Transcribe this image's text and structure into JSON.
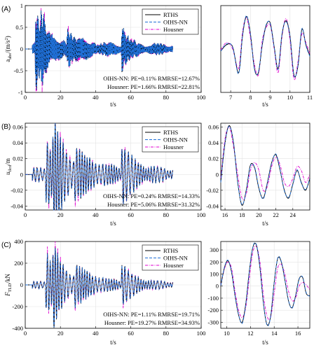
{
  "colors": {
    "rths": "#000000",
    "oihs": "#1f6fd6",
    "housner": "#e000d0"
  },
  "legend": [
    "RTHS",
    "OIHS-NN",
    "Housner"
  ],
  "chart_data": [
    {
      "panel": "(A)",
      "type": "line",
      "ylabel": "a_abs/(m/s^2)",
      "xlabel": "t/s",
      "xlim": [
        0,
        100
      ],
      "ylim": [
        -1,
        1
      ],
      "xticks": [
        "0",
        "20",
        "40",
        "60",
        "80",
        "100"
      ],
      "yticks": [
        "-1",
        "-0.5",
        "0",
        "0.5",
        "1"
      ],
      "annotation": [
        "OIHS-NN: PE=0.11%  RMRSE=12.67%",
        "Housner: PE=1.66%  RMRSE=22.81%"
      ],
      "signal": {
        "duration": 84,
        "events": [
          [
            6,
            0.95,
            1.6
          ],
          [
            9,
            0.6,
            2.5
          ],
          [
            24,
            0.35,
            4
          ],
          [
            55,
            0.55,
            1.5
          ]
        ],
        "baseline": 0.06,
        "freq": 2.7
      }
    },
    {
      "panel": "(A)",
      "type": "line",
      "zoom": true,
      "xlim": [
        6.5,
        11
      ],
      "ylim": [
        -1,
        1
      ],
      "xticks": [
        "7",
        "8",
        "9",
        "10",
        "11"
      ],
      "series": [
        {
          "name": "RTHS",
          "x": [
            6.5,
            6.8,
            7.1,
            7.4,
            7.6,
            7.8,
            8.0,
            8.2,
            8.4,
            8.6,
            8.8,
            9.0,
            9.2,
            9.4,
            9.6,
            9.8,
            10.0,
            10.2,
            10.4,
            10.6,
            10.8,
            11.0
          ],
          "y": [
            -0.05,
            0.1,
            0.05,
            -0.55,
            0.3,
            0.75,
            0.35,
            -0.45,
            -0.55,
            0.1,
            0.55,
            0.6,
            0.05,
            -0.45,
            0.35,
            0.65,
            0.3,
            -0.6,
            -0.4,
            0.45,
            0.1,
            -0.15
          ]
        },
        {
          "name": "OIHS-NN",
          "x": [
            6.5,
            6.8,
            7.1,
            7.4,
            7.6,
            7.8,
            8.0,
            8.2,
            8.4,
            8.6,
            8.8,
            9.0,
            9.2,
            9.4,
            9.6,
            9.8,
            10.0,
            10.2,
            10.4,
            10.6,
            10.8,
            11.0
          ],
          "y": [
            -0.05,
            0.12,
            0.04,
            -0.57,
            0.32,
            0.77,
            0.33,
            -0.47,
            -0.53,
            0.12,
            0.57,
            0.58,
            0.03,
            -0.47,
            0.37,
            0.63,
            0.28,
            -0.62,
            -0.38,
            0.47,
            0.08,
            -0.17
          ]
        },
        {
          "name": "Housner",
          "x": [
            6.5,
            6.8,
            7.1,
            7.4,
            7.6,
            7.8,
            8.0,
            8.2,
            8.4,
            8.6,
            8.8,
            9.0,
            9.2,
            9.4,
            9.6,
            9.8,
            10.0,
            10.2,
            10.4,
            10.6,
            10.8,
            11.0
          ],
          "y": [
            -0.02,
            0.15,
            0.0,
            -0.45,
            0.4,
            0.72,
            0.25,
            -0.35,
            -0.6,
            0.2,
            0.5,
            0.55,
            0.0,
            -0.55,
            0.3,
            0.7,
            0.2,
            -0.7,
            -0.3,
            0.35,
            0.15,
            -0.1
          ]
        }
      ]
    },
    {
      "panel": "(B)",
      "type": "line",
      "ylabel": "u_tlcd/m",
      "xlabel": "t/s",
      "xlim": [
        0,
        100
      ],
      "ylim": [
        -0.045,
        0.065
      ],
      "xticks": [
        "0",
        "20",
        "40",
        "60",
        "80",
        "100"
      ],
      "yticks": [
        "-0.04",
        "-0.02",
        "0",
        "0.02",
        "0.04",
        "0.06"
      ],
      "annotation": [
        "OIHS-NN: PE=0.24%  RMRSE=14.33%",
        "Housner: PE=5.06%  RMRSE=31.32%"
      ],
      "signal": {
        "duration": 84,
        "events": [
          [
            12,
            0.045,
            3
          ],
          [
            16,
            0.062,
            2.5
          ],
          [
            28,
            0.025,
            5
          ],
          [
            55,
            0.04,
            2.5
          ]
        ],
        "baseline": 0.004,
        "freq": 0.6
      }
    },
    {
      "panel": "(B)",
      "type": "line",
      "zoom": true,
      "xlim": [
        15.5,
        26
      ],
      "ylim": [
        -0.045,
        0.065
      ],
      "xticks": [
        "16",
        "18",
        "20",
        "22",
        "24"
      ],
      "yticks": [
        "-0.04",
        "-0.02",
        "0",
        "0.02",
        "0.04",
        "0.06"
      ],
      "series": [
        {
          "name": "RTHS",
          "x": [
            15.5,
            16.0,
            16.5,
            17.0,
            17.5,
            18.0,
            18.5,
            19.0,
            19.5,
            20.0,
            20.5,
            21.0,
            21.5,
            22.0,
            22.5,
            23.0,
            23.5,
            24.0,
            24.5,
            25.0,
            25.5,
            26.0
          ],
          "y": [
            -0.01,
            0.04,
            0.062,
            0.04,
            -0.01,
            -0.039,
            -0.02,
            0.012,
            0.008,
            -0.018,
            -0.03,
            -0.01,
            0.015,
            0.025,
            0.005,
            -0.02,
            -0.03,
            -0.012,
            0.005,
            -0.01,
            -0.02,
            -0.005
          ]
        },
        {
          "name": "OIHS-NN",
          "x": [
            15.5,
            16.0,
            16.5,
            17.0,
            17.5,
            18.0,
            18.5,
            19.0,
            19.5,
            20.0,
            20.5,
            21.0,
            21.5,
            22.0,
            22.5,
            23.0,
            23.5,
            24.0,
            24.5,
            25.0,
            25.5,
            26.0
          ],
          "y": [
            -0.01,
            0.041,
            0.061,
            0.041,
            -0.011,
            -0.038,
            -0.021,
            0.011,
            0.009,
            -0.017,
            -0.031,
            -0.011,
            0.014,
            0.026,
            0.006,
            -0.021,
            -0.029,
            -0.013,
            0.006,
            -0.011,
            -0.019,
            -0.006
          ]
        },
        {
          "name": "Housner",
          "x": [
            15.5,
            16.0,
            16.5,
            17.0,
            17.5,
            18.0,
            18.5,
            19.0,
            19.5,
            20.0,
            20.5,
            21.0,
            21.5,
            22.0,
            22.5,
            23.0,
            23.5,
            24.0,
            24.5,
            25.0,
            25.5,
            26.0
          ],
          "y": [
            -0.005,
            0.045,
            0.06,
            0.035,
            0.0,
            -0.03,
            -0.025,
            0.005,
            0.015,
            0.005,
            -0.02,
            -0.015,
            0.01,
            0.022,
            0.012,
            -0.01,
            -0.015,
            -0.005,
            0.01,
            0.005,
            -0.01,
            0.0
          ]
        }
      ]
    },
    {
      "panel": "(C)",
      "type": "line",
      "ylabel": "F_TLD/kN",
      "xlabel": "t/s",
      "xlim": [
        0,
        100
      ],
      "ylim": [
        -400,
        400
      ],
      "xticks": [
        "0",
        "20",
        "40",
        "60",
        "80",
        "100"
      ],
      "yticks": [
        "-400",
        "-200",
        "0",
        "200",
        "400"
      ],
      "annotation": [
        "OIHS-NN: PE=1.11%  RMRSE=19.71%",
        "Housner: PE=19.27%  RMRSE=34.93%"
      ],
      "signal": {
        "duration": 84,
        "events": [
          [
            12,
            340,
            2.5
          ],
          [
            16,
            300,
            2.5
          ],
          [
            28,
            160,
            5
          ],
          [
            55,
            210,
            2.5
          ]
        ],
        "baseline": 15,
        "freq": 0.6
      }
    },
    {
      "panel": "(C)",
      "type": "line",
      "zoom": true,
      "xlim": [
        9.5,
        17
      ],
      "ylim": [
        -350,
        370
      ],
      "xticks": [
        "10",
        "12",
        "14",
        "16"
      ],
      "yticks": [
        "-300",
        "-200",
        "-100",
        "0",
        "100",
        "200",
        "300"
      ],
      "series": [
        {
          "name": "RTHS",
          "x": [
            9.5,
            9.8,
            10.1,
            10.4,
            10.7,
            11.0,
            11.3,
            11.6,
            11.9,
            12.2,
            12.5,
            12.8,
            13.1,
            13.4,
            13.7,
            14.0,
            14.3,
            14.6,
            14.9,
            15.2,
            15.5,
            15.8,
            16.1,
            16.4,
            16.7,
            17.0
          ],
          "y": [
            0,
            150,
            210,
            120,
            -80,
            -240,
            -300,
            -150,
            120,
            320,
            340,
            150,
            -150,
            -320,
            -250,
            30,
            230,
            200,
            50,
            -120,
            -180,
            -80,
            60,
            70,
            -60,
            -80
          ]
        },
        {
          "name": "OIHS-NN",
          "x": [
            9.5,
            9.8,
            10.1,
            10.4,
            10.7,
            11.0,
            11.3,
            11.6,
            11.9,
            12.2,
            12.5,
            12.8,
            13.1,
            13.4,
            13.7,
            14.0,
            14.3,
            14.6,
            14.9,
            15.2,
            15.5,
            15.8,
            16.1,
            16.4,
            16.7,
            17.0
          ],
          "y": [
            5,
            155,
            215,
            125,
            -75,
            -235,
            -310,
            -160,
            115,
            325,
            345,
            155,
            -145,
            -325,
            -255,
            25,
            235,
            205,
            55,
            -115,
            -185,
            -85,
            55,
            75,
            -55,
            -85
          ]
        },
        {
          "name": "Housner",
          "x": [
            9.5,
            9.8,
            10.1,
            10.4,
            10.7,
            11.0,
            11.3,
            11.6,
            11.9,
            12.2,
            12.5,
            12.8,
            13.1,
            13.4,
            13.7,
            14.0,
            14.3,
            14.6,
            14.9,
            15.2,
            15.5,
            15.8,
            16.1,
            16.4,
            16.7,
            17.0
          ],
          "y": [
            10,
            140,
            200,
            150,
            -40,
            -200,
            -260,
            -180,
            60,
            280,
            330,
            200,
            -80,
            -250,
            -260,
            -60,
            150,
            180,
            100,
            -40,
            -120,
            -100,
            0,
            30,
            10,
            -30
          ]
        }
      ]
    }
  ]
}
